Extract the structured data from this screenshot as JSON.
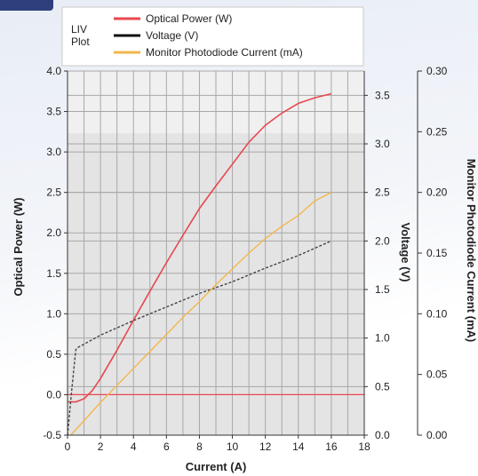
{
  "chart_data": {
    "type": "line",
    "legend_title": "LIV Plot",
    "legend_position": "top-center",
    "grid": true,
    "xlabel": "Current (A)",
    "xlim": [
      0,
      18
    ],
    "x_ticks": [
      "0",
      "2",
      "4",
      "6",
      "8",
      "10",
      "12",
      "14",
      "16",
      "18"
    ],
    "y_left": {
      "label": "Optical Power (W)",
      "lim": [
        -0.5,
        4.0
      ],
      "ticks": [
        "-0.5",
        "0.0",
        "0.5",
        "1.0",
        "1.5",
        "2.0",
        "2.5",
        "3.0",
        "3.5",
        "4.0"
      ]
    },
    "y_mid": {
      "label": "Voltage (V)",
      "lim": [
        0.0,
        3.75
      ],
      "ticks": [
        "0.0",
        "0.5",
        "1.0",
        "1.5",
        "2.0",
        "2.5",
        "3.0",
        "3.5"
      ]
    },
    "y_right": {
      "label": "Monitor Photodiode Current (mA)",
      "lim": [
        0.0,
        0.3
      ],
      "ticks": [
        "0.00",
        "0.05",
        "0.10",
        "0.15",
        "0.20",
        "0.25",
        "0.30"
      ]
    },
    "series": [
      {
        "name": "Optical Power (W)",
        "color": "#e8474f",
        "axis": "left",
        "x": [
          0,
          0.5,
          1.0,
          1.5,
          2.0,
          3.0,
          4.0,
          5.0,
          6.0,
          7.0,
          8.0,
          9.0,
          10.0,
          11.0,
          12.0,
          13.0,
          14.0,
          15.0,
          16.0
        ],
        "y": [
          -0.09,
          -0.09,
          -0.05,
          0.05,
          0.2,
          0.55,
          0.92,
          1.28,
          1.63,
          1.97,
          2.3,
          2.58,
          2.85,
          3.12,
          3.33,
          3.48,
          3.6,
          3.67,
          3.72
        ]
      },
      {
        "name": "Optical Power baseline",
        "color": "#e8474f",
        "axis": "left",
        "x": [
          0,
          18
        ],
        "y": [
          0.0,
          0.0
        ]
      },
      {
        "name": "Voltage (V)",
        "color": "#444444",
        "axis": "mid",
        "x": [
          0,
          0.25,
          0.5,
          0.6,
          2,
          4,
          6,
          8,
          10,
          12,
          14,
          16
        ],
        "y": [
          0.0,
          0.45,
          0.88,
          0.9,
          1.03,
          1.18,
          1.32,
          1.46,
          1.58,
          1.72,
          1.85,
          2.0
        ]
      },
      {
        "name": "Monitor Photodiode Current (mA)",
        "color": "#f3b64e",
        "axis": "right",
        "x": [
          0.2,
          1,
          2,
          3,
          4,
          5,
          6,
          7,
          8,
          9,
          10,
          11,
          12,
          13,
          14,
          15,
          16
        ],
        "y": [
          0.0,
          0.012,
          0.027,
          0.041,
          0.055,
          0.069,
          0.083,
          0.097,
          0.11,
          0.124,
          0.137,
          0.15,
          0.162,
          0.172,
          0.181,
          0.193,
          0.2
        ]
      }
    ]
  }
}
